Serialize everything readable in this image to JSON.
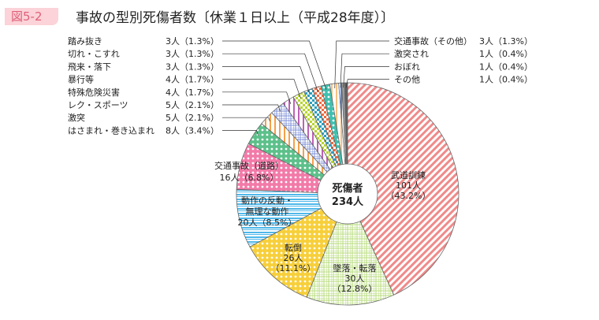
{
  "figure": {
    "badge": "図5-2",
    "title": "事故の型別死傷者数〔休業１日以上（平成28年度）〕"
  },
  "chart_data": {
    "type": "pie",
    "style": "donut",
    "title": "事故の型別死傷者数〔休業１日以上（平成28年度）〕",
    "center_label": [
      "死傷者",
      "234人"
    ],
    "total": 234,
    "unit": "人",
    "slices": [
      {
        "name": "武道訓練",
        "value": 101,
        "percent": "43.2%",
        "label": "101人",
        "pct_label": "（43.2%）",
        "color": "#f08a8a"
      },
      {
        "name": "墜落・転落",
        "value": 30,
        "percent": "12.8%",
        "label": "30人",
        "pct_label": "（12.8%）",
        "color": "#b9dc7e"
      },
      {
        "name": "転倒",
        "value": 26,
        "percent": "11.1%",
        "label": "26人",
        "pct_label": "（11.1%）",
        "color": "#f7cf3a"
      },
      {
        "name": "動作の反動・無理な動作",
        "value": 20,
        "percent": "8.5%",
        "label": "20人（8.5%）",
        "color": "#4fb8ea"
      },
      {
        "name": "交通事故（道路）",
        "value": 16,
        "percent": "6.8%",
        "label": "16人（6.8%）",
        "color": "#f27aa8"
      },
      {
        "name": "はさまれ・巻き込まれ",
        "value": 8,
        "percent": "3.4%",
        "label": "8人（3.4%）",
        "color": "#5cc08a"
      },
      {
        "name": "激突",
        "value": 5,
        "percent": "2.1%",
        "label": "5人（2.1%）",
        "color": "#f5a04a"
      },
      {
        "name": "レク・スポーツ",
        "value": 5,
        "percent": "2.1%",
        "label": "5人（2.1%）",
        "color": "#7f90d8"
      },
      {
        "name": "特殊危険災害",
        "value": 4,
        "percent": "1.7%",
        "label": "4人（1.7%）",
        "color": "#c060b8"
      },
      {
        "name": "暴行等",
        "value": 4,
        "percent": "1.7%",
        "label": "4人（1.7%）",
        "color": "#b8d630"
      },
      {
        "name": "飛来・落下",
        "value": 3,
        "percent": "1.3%",
        "label": "3人（1.3%）",
        "color": "#2aa0c0"
      },
      {
        "name": "切れ・こすれ",
        "value": 3,
        "percent": "1.3%",
        "label": "3人（1.3%）",
        "color": "#f06a40"
      },
      {
        "name": "踏み抜き",
        "value": 3,
        "percent": "1.3%",
        "label": "3人（1.3%）",
        "color": "#40c0b0"
      },
      {
        "name": "交通事故（その他）",
        "value": 3,
        "percent": "1.3%",
        "label": "3人（1.3%）",
        "color": "#f8c080"
      },
      {
        "name": "激突され",
        "value": 1,
        "percent": "0.4%",
        "label": "1人（0.4%）",
        "color": "#5a80c8"
      },
      {
        "name": "おぼれ",
        "value": 1,
        "percent": "0.4%",
        "label": "1人（0.4%）",
        "color": "#9a9a9a"
      },
      {
        "name": "その他",
        "value": 1,
        "percent": "0.4%",
        "label": "1人（0.4%）",
        "color": "#606060"
      }
    ]
  }
}
